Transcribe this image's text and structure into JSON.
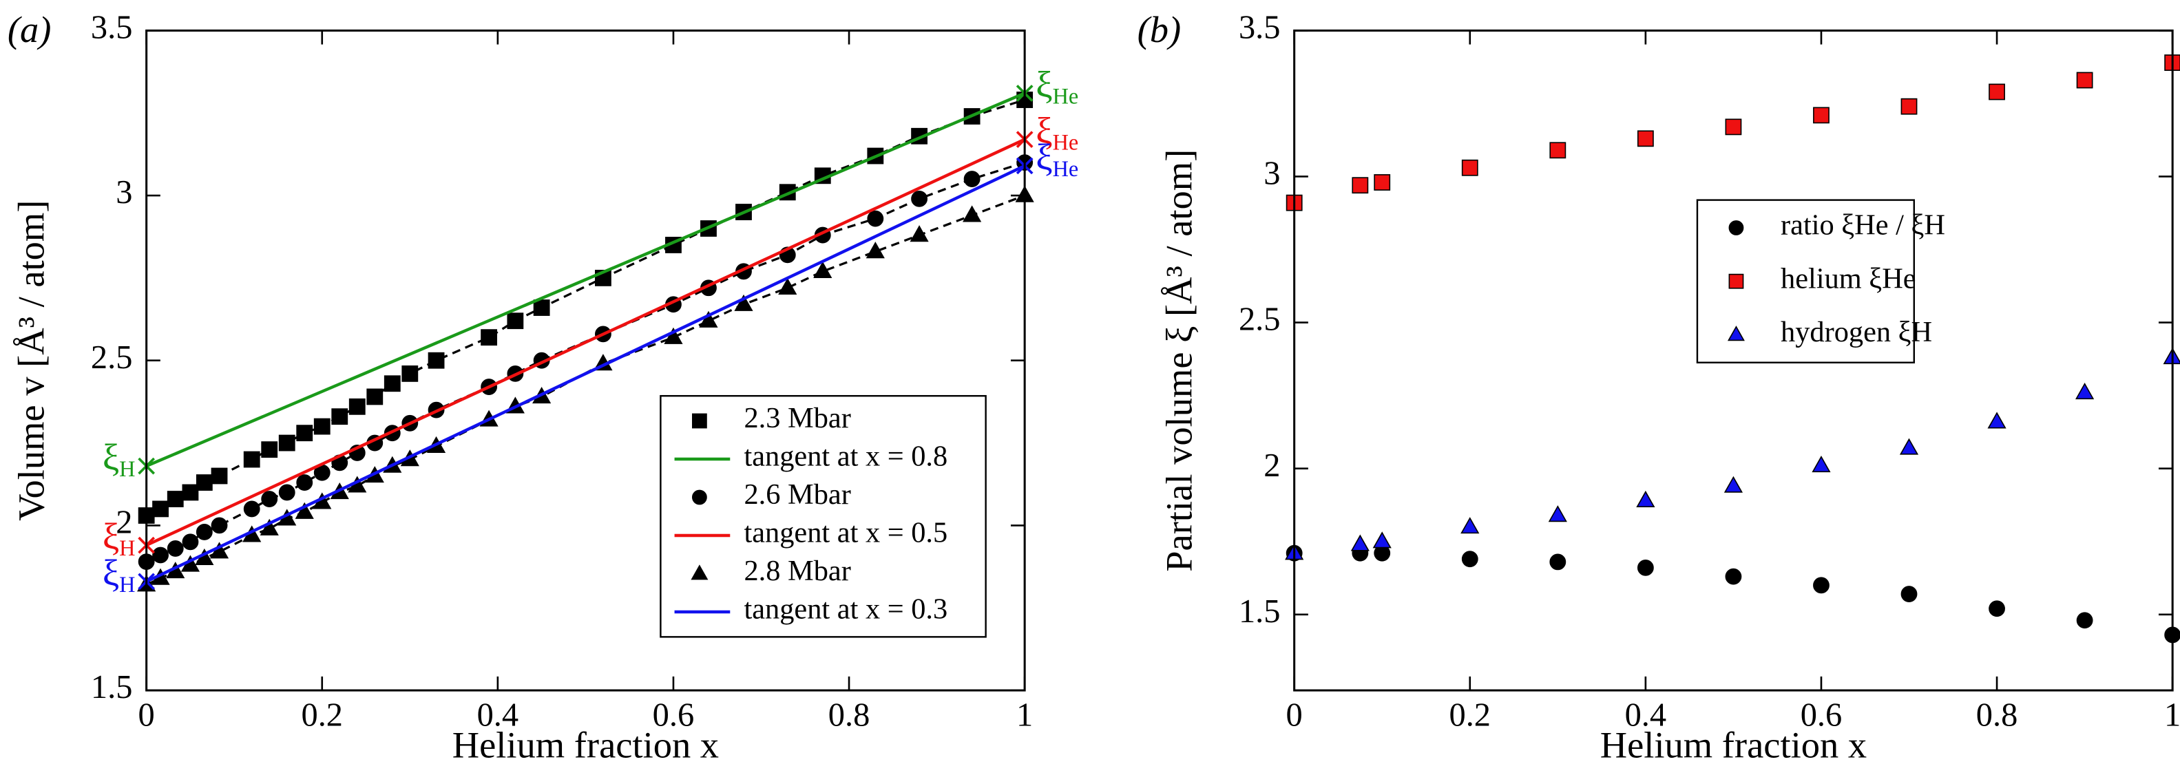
{
  "chart_data": [
    {
      "type": "scatter",
      "panel_label": "(a)",
      "xlabel": "Helium fraction x",
      "ylabel": "Volume v [Å³ / atom]",
      "xlim": [
        0,
        1
      ],
      "ylim": [
        1.5,
        3.5
      ],
      "xticks": [
        0,
        0.2,
        0.4,
        0.6,
        0.8,
        1
      ],
      "yticks": [
        1.5,
        2,
        2.5,
        3,
        3.5
      ],
      "legend": "lower right",
      "series": [
        {
          "name": "2.3 Mbar",
          "color": "#000000",
          "marker": "square",
          "line": "dashed",
          "x": [
            0,
            0.016,
            0.033,
            0.05,
            0.066,
            0.083,
            0.12,
            0.14,
            0.16,
            0.18,
            0.2,
            0.22,
            0.24,
            0.26,
            0.28,
            0.3,
            0.33,
            0.39,
            0.42,
            0.45,
            0.52,
            0.6,
            0.64,
            0.68,
            0.73,
            0.77,
            0.83,
            0.88,
            0.94,
            1
          ],
          "values": [
            2.03,
            2.05,
            2.08,
            2.1,
            2.13,
            2.15,
            2.2,
            2.23,
            2.25,
            2.28,
            2.3,
            2.33,
            2.36,
            2.39,
            2.43,
            2.46,
            2.5,
            2.57,
            2.62,
            2.66,
            2.75,
            2.85,
            2.9,
            2.95,
            3.01,
            3.06,
            3.12,
            3.18,
            3.24,
            3.29
          ]
        },
        {
          "name": "tangent at x = 0.8",
          "color": "#1a9a1a",
          "marker": "cross",
          "line": "solid",
          "x": [
            0,
            1
          ],
          "values": [
            2.18,
            3.31
          ],
          "left_label": {
            "text": "ξ",
            "sub": "H"
          },
          "right_label": {
            "text": "ξ",
            "sub": "He"
          }
        },
        {
          "name": "2.6 Mbar",
          "color": "#000000",
          "marker": "circle",
          "line": "dashed",
          "x": [
            0,
            0.016,
            0.033,
            0.05,
            0.066,
            0.083,
            0.12,
            0.14,
            0.16,
            0.18,
            0.2,
            0.22,
            0.24,
            0.26,
            0.28,
            0.3,
            0.33,
            0.39,
            0.42,
            0.45,
            0.52,
            0.6,
            0.64,
            0.68,
            0.73,
            0.77,
            0.83,
            0.88,
            0.94,
            1
          ],
          "values": [
            1.89,
            1.91,
            1.93,
            1.95,
            1.98,
            2.0,
            2.05,
            2.08,
            2.1,
            2.13,
            2.16,
            2.19,
            2.22,
            2.25,
            2.28,
            2.31,
            2.35,
            2.42,
            2.46,
            2.5,
            2.58,
            2.67,
            2.72,
            2.77,
            2.82,
            2.88,
            2.93,
            2.99,
            3.05,
            3.1
          ]
        },
        {
          "name": "tangent at x = 0.5",
          "color": "#ee1111",
          "marker": "cross",
          "line": "solid",
          "x": [
            0,
            1
          ],
          "values": [
            1.94,
            3.17
          ],
          "left_label": {
            "text": "ξ",
            "sub": "H"
          },
          "right_label": {
            "text": "ξ",
            "sub": "He"
          }
        },
        {
          "name": "2.8 Mbar",
          "color": "#000000",
          "marker": "triangle",
          "line": "dashed",
          "x": [
            0,
            0.016,
            0.033,
            0.05,
            0.066,
            0.083,
            0.12,
            0.14,
            0.16,
            0.18,
            0.2,
            0.22,
            0.24,
            0.26,
            0.28,
            0.3,
            0.33,
            0.39,
            0.42,
            0.45,
            0.52,
            0.6,
            0.64,
            0.68,
            0.73,
            0.77,
            0.83,
            0.88,
            0.94,
            1
          ],
          "values": [
            1.82,
            1.84,
            1.86,
            1.88,
            1.9,
            1.92,
            1.97,
            1.99,
            2.02,
            2.04,
            2.07,
            2.1,
            2.12,
            2.15,
            2.18,
            2.2,
            2.24,
            2.32,
            2.36,
            2.39,
            2.49,
            2.57,
            2.62,
            2.67,
            2.72,
            2.77,
            2.83,
            2.88,
            2.94,
            3.0
          ]
        },
        {
          "name": "tangent at x = 0.3",
          "color": "#1111ee",
          "marker": "cross",
          "line": "solid",
          "x": [
            0,
            1
          ],
          "values": [
            1.83,
            3.09
          ],
          "left_label": {
            "text": "ξ",
            "sub": "H"
          },
          "right_label": {
            "text": "ξ",
            "sub": "He"
          }
        }
      ]
    },
    {
      "type": "scatter",
      "panel_label": "(b)",
      "xlabel": "Helium fraction x",
      "ylabel": "Partial volume ξ [Å³ / atom]",
      "xlim": [
        0,
        1
      ],
      "ylim": [
        1.24,
        3.5
      ],
      "xticks": [
        0,
        0.2,
        0.4,
        0.6,
        0.8,
        1
      ],
      "yticks": [
        1.5,
        2,
        2.5,
        3,
        3.5
      ],
      "legend": "center right",
      "series": [
        {
          "name": "ratio ξHe / ξH",
          "color": "#000000",
          "marker": "circle",
          "x": [
            0,
            0.075,
            0.1,
            0.2,
            0.3,
            0.4,
            0.5,
            0.6,
            0.7,
            0.8,
            0.9,
            1
          ],
          "values": [
            1.71,
            1.71,
            1.71,
            1.69,
            1.68,
            1.66,
            1.63,
            1.6,
            1.57,
            1.52,
            1.48,
            1.43
          ]
        },
        {
          "name": "helium ξHe",
          "color": "#ee1111",
          "marker": "square",
          "x": [
            0,
            0.075,
            0.1,
            0.2,
            0.3,
            0.4,
            0.5,
            0.6,
            0.7,
            0.8,
            0.9,
            1
          ],
          "values": [
            2.91,
            2.97,
            2.98,
            3.03,
            3.09,
            3.13,
            3.17,
            3.21,
            3.24,
            3.29,
            3.33,
            3.39
          ]
        },
        {
          "name": "hydrogen ξH",
          "color": "#1111ee",
          "marker": "triangle",
          "x": [
            0,
            0.075,
            0.1,
            0.2,
            0.3,
            0.4,
            0.5,
            0.6,
            0.7,
            0.8,
            0.9,
            1
          ],
          "values": [
            1.71,
            1.74,
            1.75,
            1.8,
            1.84,
            1.89,
            1.94,
            2.01,
            2.07,
            2.16,
            2.26,
            2.38
          ]
        }
      ]
    }
  ]
}
